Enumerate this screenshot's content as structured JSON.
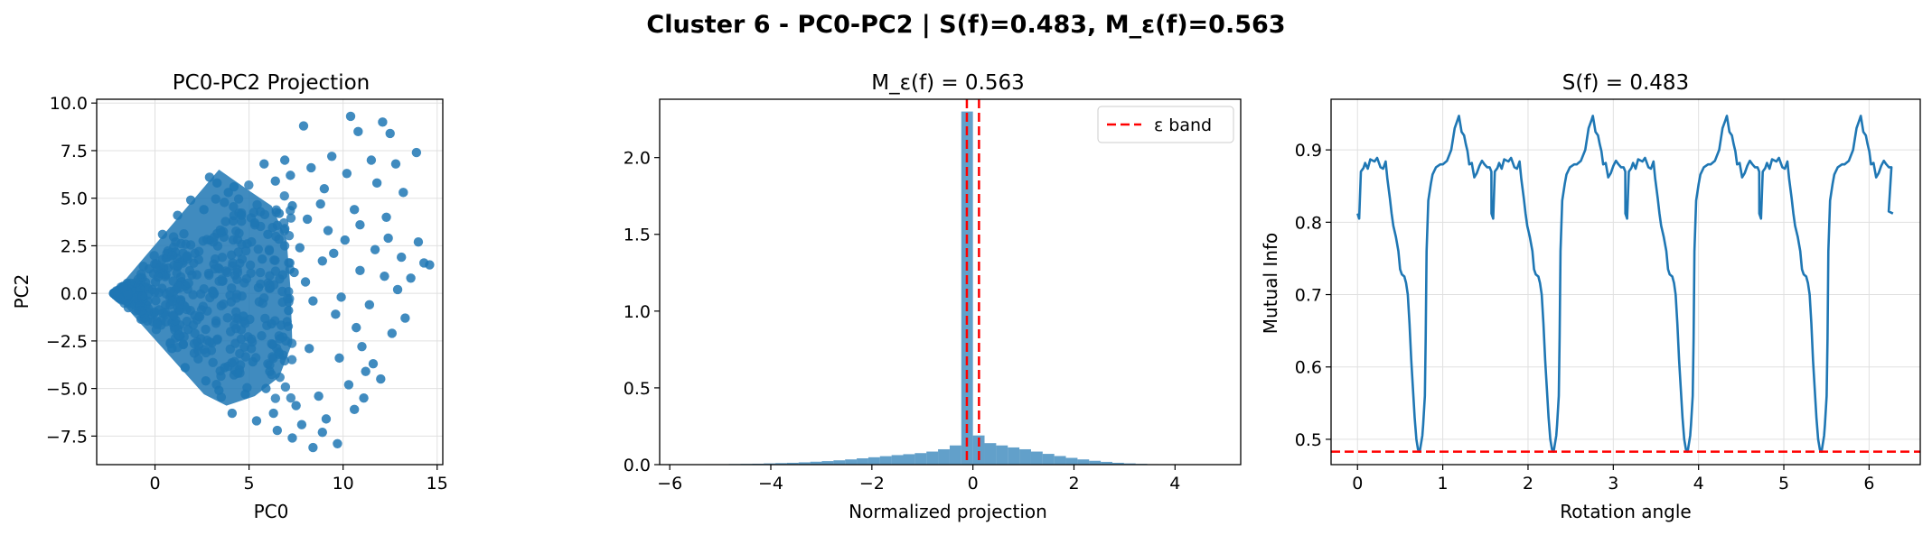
{
  "figure": {
    "suptitle": "Cluster 6 - PC0-PC2 | S(f)=0.483, M_ε(f)=0.563",
    "colors": {
      "blue": "#1f77b4",
      "red": "#ff0000",
      "grid": "#e0e0e0"
    }
  },
  "chart_data": [
    {
      "type": "scatter",
      "title": "PC0-PC2 Projection",
      "xlabel": "PC0",
      "ylabel": "PC2",
      "xlim": [
        -3.1,
        15.3
      ],
      "ylim": [
        -9.0,
        10.2
      ],
      "xticks": [
        0,
        5,
        10,
        15
      ],
      "xtick_labels": [
        "0",
        "5",
        "10",
        "15"
      ],
      "yticks": [
        -7.5,
        -5.0,
        -2.5,
        0.0,
        2.5,
        5.0,
        7.5,
        10.0
      ],
      "ytick_labels": [
        "−7.5",
        "−5.0",
        "−2.5",
        "0.0",
        "2.5",
        "5.0",
        "7.5",
        "10.0"
      ],
      "grid": true,
      "description_points": "dense wedge from (-2.2,0) opening to the right; sparse outliers",
      "points": [
        [
          7.9,
          8.8
        ],
        [
          10.4,
          9.3
        ],
        [
          12.1,
          9.0
        ],
        [
          12.5,
          8.4
        ],
        [
          10.8,
          8.5
        ],
        [
          13.9,
          7.4
        ],
        [
          11.5,
          7.0
        ],
        [
          12.8,
          6.8
        ],
        [
          9.4,
          7.2
        ],
        [
          8.3,
          6.6
        ],
        [
          10.2,
          6.3
        ],
        [
          11.8,
          5.8
        ],
        [
          13.2,
          5.3
        ],
        [
          9.0,
          5.5
        ],
        [
          7.2,
          6.2
        ],
        [
          6.4,
          5.9
        ],
        [
          8.8,
          4.7
        ],
        [
          10.6,
          4.4
        ],
        [
          12.3,
          4.0
        ],
        [
          14.0,
          2.7
        ],
        [
          14.3,
          1.6
        ],
        [
          14.6,
          1.5
        ],
        [
          13.1,
          1.9
        ],
        [
          11.7,
          2.3
        ],
        [
          10.1,
          2.8
        ],
        [
          9.2,
          3.3
        ],
        [
          8.1,
          3.9
        ],
        [
          7.3,
          4.6
        ],
        [
          6.6,
          4.2
        ],
        [
          6.0,
          3.1
        ],
        [
          7.7,
          2.4
        ],
        [
          8.9,
          1.7
        ],
        [
          10.9,
          1.2
        ],
        [
          12.2,
          0.9
        ],
        [
          12.9,
          0.2
        ],
        [
          11.4,
          -0.6
        ],
        [
          13.3,
          -1.3
        ],
        [
          12.6,
          -2.1
        ],
        [
          10.7,
          -1.8
        ],
        [
          9.6,
          -1.1
        ],
        [
          8.4,
          -0.4
        ],
        [
          7.1,
          -0.9
        ],
        [
          6.8,
          -2.3
        ],
        [
          8.2,
          -2.9
        ],
        [
          9.8,
          -3.4
        ],
        [
          11.6,
          -3.7
        ],
        [
          12.0,
          -4.5
        ],
        [
          10.3,
          -4.8
        ],
        [
          8.7,
          -5.4
        ],
        [
          7.5,
          -5.9
        ],
        [
          6.3,
          -6.3
        ],
        [
          5.4,
          -6.7
        ],
        [
          7.8,
          -6.9
        ],
        [
          8.9,
          -7.3
        ],
        [
          9.7,
          -7.9
        ],
        [
          8.4,
          -8.1
        ],
        [
          7.3,
          -7.6
        ],
        [
          6.5,
          -7.2
        ],
        [
          10.6,
          -6.1
        ],
        [
          11.1,
          -5.5
        ],
        [
          9.1,
          -6.6
        ],
        [
          5.9,
          -5.0
        ],
        [
          4.8,
          -5.3
        ],
        [
          6.1,
          -4.1
        ],
        [
          5.2,
          -3.6
        ],
        [
          4.4,
          -4.2
        ],
        [
          3.7,
          -3.9
        ],
        [
          5.7,
          1.8
        ],
        [
          4.9,
          2.6
        ],
        [
          5.3,
          3.7
        ],
        [
          4.6,
          4.1
        ],
        [
          3.9,
          5.3
        ],
        [
          4.2,
          5.6
        ],
        [
          6.9,
          7.0
        ],
        [
          5.8,
          6.8
        ],
        [
          2.9,
          6.1
        ],
        [
          3.3,
          5.8
        ],
        [
          1.9,
          4.9
        ],
        [
          1.2,
          4.1
        ],
        [
          2.6,
          4.4
        ],
        [
          0.4,
          3.1
        ],
        [
          3.4,
          -5.1
        ],
        [
          2.7,
          -4.6
        ],
        [
          1.6,
          -3.9
        ],
        [
          0.9,
          -2.9
        ],
        [
          4.1,
          -6.3
        ],
        [
          6.9,
          3.4
        ],
        [
          8.0,
          0.6
        ],
        [
          9.9,
          -0.2
        ],
        [
          11.0,
          -2.8
        ],
        [
          13.6,
          0.8
        ],
        [
          7.4,
          1.1
        ],
        [
          6.2,
          -1.6
        ],
        [
          5.5,
          0.3
        ],
        [
          4.7,
          -1.2
        ],
        [
          6.6,
          -3.2
        ],
        [
          9.5,
          2.1
        ],
        [
          10.9,
          3.6
        ],
        [
          12.4,
          2.9
        ],
        [
          11.2,
          -4.1
        ]
      ]
    },
    {
      "type": "bar",
      "title": "M_ε(f) = 0.563",
      "xlabel": "Normalized projection",
      "ylabel": "",
      "xlim": [
        -6.2,
        5.3
      ],
      "ylim": [
        0,
        2.38
      ],
      "xticks": [
        -6,
        -4,
        -2,
        0,
        2,
        4
      ],
      "xtick_labels": [
        "−6",
        "−4",
        "−2",
        "0",
        "2",
        "4"
      ],
      "yticks": [
        0.0,
        0.5,
        1.0,
        1.5,
        2.0
      ],
      "ytick_labels": [
        "0.0",
        "0.5",
        "1.0",
        "1.5",
        "2.0"
      ],
      "grid": false,
      "bin_width": 0.23,
      "bins_start": [
        -5.75,
        -5.52,
        -5.29,
        -5.06,
        -4.83,
        -4.6,
        -4.37,
        -4.14,
        -3.91,
        -3.68,
        -3.45,
        -3.22,
        -2.99,
        -2.76,
        -2.53,
        -2.3,
        -2.07,
        -1.84,
        -1.61,
        -1.38,
        -1.15,
        -0.92,
        -0.69,
        -0.46,
        -0.23,
        0.0,
        0.23,
        0.46,
        0.69,
        0.92,
        1.15,
        1.38,
        1.61,
        1.84,
        2.07,
        2.3,
        2.53,
        2.76,
        2.99,
        3.22,
        3.45,
        3.68,
        3.91,
        4.14
      ],
      "values": [
        0.002,
        0.002,
        0.003,
        0.003,
        0.004,
        0.005,
        0.006,
        0.008,
        0.01,
        0.012,
        0.015,
        0.019,
        0.023,
        0.028,
        0.034,
        0.041,
        0.048,
        0.055,
        0.062,
        0.068,
        0.075,
        0.085,
        0.1,
        0.125,
        2.3,
        0.19,
        0.14,
        0.125,
        0.112,
        0.1,
        0.085,
        0.07,
        0.056,
        0.044,
        0.034,
        0.025,
        0.018,
        0.012,
        0.008,
        0.005,
        0.003,
        0.002,
        0.001,
        0.001
      ],
      "epsilon_lines": [
        -0.12,
        0.12
      ],
      "legend": {
        "label": "ε band",
        "placement": "upper right"
      }
    },
    {
      "type": "line",
      "title": "S(f) = 0.483",
      "xlabel": "Rotation angle",
      "ylabel": "Mutual Info",
      "xlim": [
        -0.31,
        6.6
      ],
      "ylim": [
        0.465,
        0.97
      ],
      "xticks": [
        0,
        1,
        2,
        3,
        4,
        5,
        6
      ],
      "xtick_labels": [
        "0",
        "1",
        "2",
        "3",
        "4",
        "5",
        "6"
      ],
      "yticks": [
        0.5,
        0.6,
        0.7,
        0.8,
        0.9
      ],
      "ytick_labels": [
        "0.5",
        "0.6",
        "0.7",
        "0.8",
        "0.9"
      ],
      "grid": true,
      "hline": 0.483,
      "period_template": [
        [
          0.0,
          0.812
        ],
        [
          0.02,
          0.805
        ],
        [
          0.04,
          0.87
        ],
        [
          0.07,
          0.875
        ],
        [
          0.09,
          0.882
        ],
        [
          0.12,
          0.874
        ],
        [
          0.15,
          0.887
        ],
        [
          0.2,
          0.884
        ],
        [
          0.23,
          0.889
        ],
        [
          0.27,
          0.876
        ],
        [
          0.3,
          0.874
        ],
        [
          0.33,
          0.884
        ],
        [
          0.35,
          0.86
        ],
        [
          0.38,
          0.833
        ],
        [
          0.4,
          0.812
        ],
        [
          0.42,
          0.795
        ],
        [
          0.45,
          0.78
        ],
        [
          0.48,
          0.76
        ],
        [
          0.5,
          0.735
        ],
        [
          0.52,
          0.728
        ],
        [
          0.55,
          0.725
        ],
        [
          0.57,
          0.716
        ],
        [
          0.59,
          0.7
        ],
        [
          0.61,
          0.66
        ],
        [
          0.63,
          0.61
        ],
        [
          0.65,
          0.57
        ],
        [
          0.67,
          0.53
        ],
        [
          0.69,
          0.5
        ],
        [
          0.71,
          0.486
        ],
        [
          0.73,
          0.483
        ],
        [
          0.76,
          0.505
        ],
        [
          0.77,
          0.52
        ],
        [
          0.79,
          0.56
        ],
        [
          0.8,
          0.64
        ],
        [
          0.81,
          0.76
        ],
        [
          0.83,
          0.83
        ],
        [
          0.86,
          0.853
        ],
        [
          0.88,
          0.866
        ],
        [
          0.92,
          0.876
        ],
        [
          0.97,
          0.88
        ],
        [
          1.0,
          0.88
        ],
        [
          1.05,
          0.885
        ],
        [
          1.1,
          0.9
        ],
        [
          1.14,
          0.93
        ],
        [
          1.17,
          0.94
        ],
        [
          1.19,
          0.947
        ],
        [
          1.22,
          0.925
        ],
        [
          1.25,
          0.92
        ],
        [
          1.27,
          0.908
        ],
        [
          1.29,
          0.898
        ],
        [
          1.31,
          0.88
        ],
        [
          1.34,
          0.882
        ],
        [
          1.37,
          0.862
        ],
        [
          1.4,
          0.868
        ],
        [
          1.43,
          0.878
        ],
        [
          1.46,
          0.885
        ],
        [
          1.49,
          0.88
        ],
        [
          1.52,
          0.876
        ],
        [
          1.55,
          0.876
        ],
        [
          1.57,
          0.87
        ]
      ],
      "period": 1.5708,
      "x_end": 6.28
    }
  ]
}
